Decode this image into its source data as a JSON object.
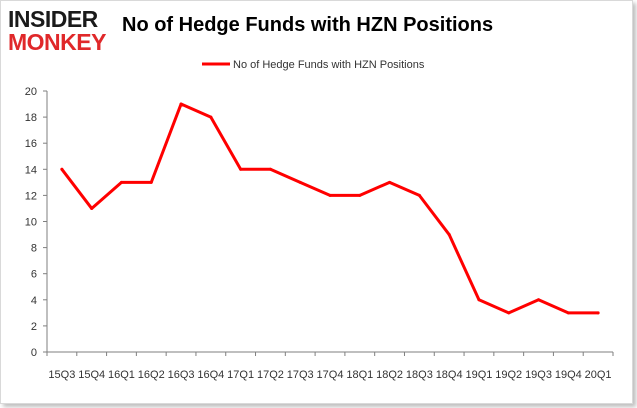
{
  "logo": {
    "line1": "INSIDER",
    "line2": "MONKEY"
  },
  "chart_data": {
    "type": "line",
    "title": "No of Hedge Funds with HZN Positions",
    "xlabel": "",
    "ylabel": "",
    "categories": [
      "15Q3",
      "15Q4",
      "16Q1",
      "16Q2",
      "16Q3",
      "16Q4",
      "17Q1",
      "17Q2",
      "17Q3",
      "17Q4",
      "18Q1",
      "18Q2",
      "18Q3",
      "18Q4",
      "19Q1",
      "19Q2",
      "19Q3",
      "19Q4",
      "20Q1"
    ],
    "series": [
      {
        "name": "No of Hedge Funds with HZN Positions",
        "color": "#ff0000",
        "values": [
          14,
          11,
          13,
          13,
          19,
          18,
          14,
          14,
          13,
          12,
          12,
          13,
          12,
          9,
          4,
          3,
          4,
          3,
          3
        ]
      }
    ],
    "ylim": [
      0,
      20
    ],
    "yticks": [
      0,
      2,
      4,
      6,
      8,
      10,
      12,
      14,
      16,
      18,
      20
    ],
    "grid": false,
    "legend": "top-center"
  }
}
